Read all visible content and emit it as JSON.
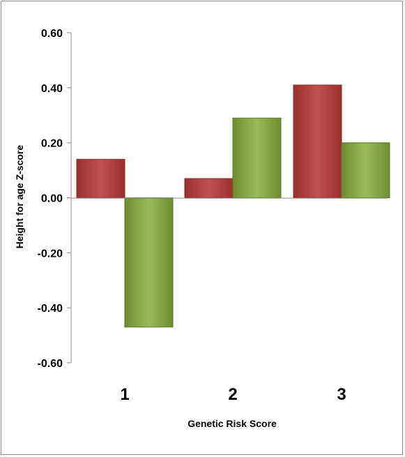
{
  "chart_data": {
    "type": "bar",
    "categories": [
      "1",
      "2",
      "3"
    ],
    "series": [
      {
        "values": [
          0.14,
          0.07,
          0.41
        ],
        "color": "#b23f3c"
      },
      {
        "values": [
          -0.47,
          0.29,
          0.2
        ],
        "color": "#7a9a3a"
      }
    ],
    "xlabel": "Genetic Risk Score",
    "ylabel": "Height for age Z-score",
    "ylim": [
      -0.6,
      0.6
    ],
    "yticks": [
      "0.60",
      "0.40",
      "0.20",
      "0.00",
      "-0.20",
      "-0.40",
      "-0.60"
    ],
    "grid": false,
    "legend": "none"
  }
}
